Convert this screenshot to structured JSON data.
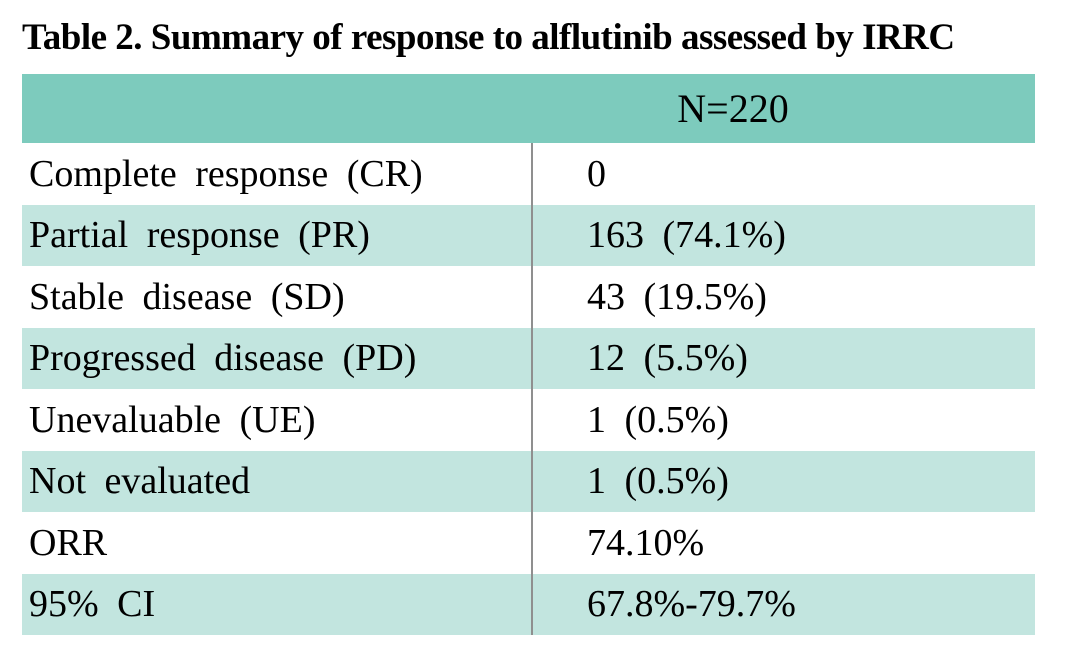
{
  "title": "Table 2. Summary of response to alflutinib assessed by IRRC",
  "table": {
    "header": {
      "value": "N=220"
    },
    "rows": [
      {
        "label": "Complete response (CR)",
        "value": "0"
      },
      {
        "label": "Partial response (PR)",
        "value": "163 (74.1%)"
      },
      {
        "label": "Stable disease (SD)",
        "value": "43 (19.5%)"
      },
      {
        "label": "Progressed disease (PD)",
        "value": "12 (5.5%)"
      },
      {
        "label": "Unevaluable (UE)",
        "value": "1 (0.5%)"
      },
      {
        "label": "Not evaluated",
        "value": "1 (0.5%)"
      },
      {
        "label": "ORR",
        "value": "74.10%"
      },
      {
        "label": "95% CI",
        "value": "67.8%-79.7%"
      }
    ]
  },
  "colors": {
    "header_fill": "#7dcbbd",
    "row_fill": "#c2e5df",
    "divider": "#8f8f8f",
    "text": "#000000",
    "background": "#ffffff"
  }
}
